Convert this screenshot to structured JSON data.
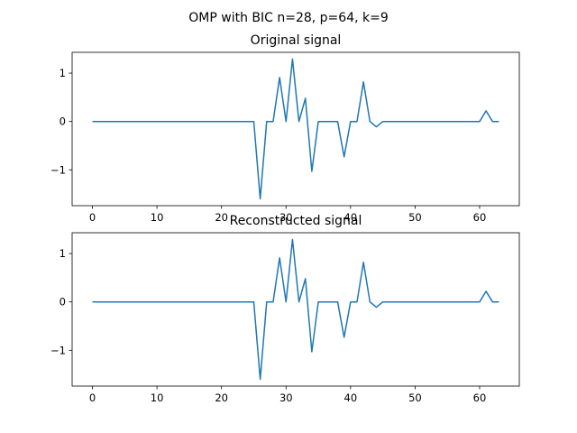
{
  "figure": {
    "suptitle": "OMP with BIC n=28, p=64, k=9",
    "line_color": "#1f77b4"
  },
  "chart_data": [
    {
      "type": "line",
      "title": "Original signal",
      "xlabel": "",
      "ylabel": "",
      "xlim": [
        -3.15,
        66.15
      ],
      "ylim": [
        -1.74,
        1.43
      ],
      "xticks": [
        0,
        10,
        20,
        30,
        40,
        50,
        60
      ],
      "xtick_labels": [
        "0",
        "10",
        "20",
        "30",
        "40",
        "50",
        "60"
      ],
      "yticks": [
        -1,
        0,
        1
      ],
      "ytick_labels": [
        "−1",
        "0",
        "1"
      ],
      "grid": false,
      "series": [
        {
          "x": [
            0,
            1,
            2,
            3,
            4,
            5,
            6,
            7,
            8,
            9,
            10,
            11,
            12,
            13,
            14,
            15,
            16,
            17,
            18,
            19,
            20,
            21,
            22,
            23,
            24,
            25,
            26,
            27,
            28,
            29,
            30,
            31,
            32,
            33,
            34,
            35,
            36,
            37,
            38,
            39,
            40,
            41,
            42,
            43,
            44,
            45,
            46,
            47,
            48,
            49,
            50,
            51,
            52,
            53,
            54,
            55,
            56,
            57,
            58,
            59,
            60,
            61,
            62,
            63
          ],
          "y": [
            0,
            0,
            0,
            0,
            0,
            0,
            0,
            0,
            0,
            0,
            0,
            0,
            0,
            0,
            0,
            0,
            0,
            0,
            0,
            0,
            0,
            0,
            0,
            0,
            0,
            0,
            -1.6,
            0,
            0,
            0.91,
            0,
            1.29,
            0,
            0.48,
            -1.03,
            0,
            0,
            0,
            0,
            -0.73,
            0,
            0,
            0.82,
            0,
            -0.11,
            0,
            0,
            0,
            0,
            0,
            0,
            0,
            0,
            0,
            0,
            0,
            0,
            0,
            0,
            0,
            0,
            0.22,
            0,
            0
          ]
        }
      ]
    },
    {
      "type": "line",
      "title": "Reconstructed signal",
      "xlabel": "",
      "ylabel": "",
      "xlim": [
        -3.15,
        66.15
      ],
      "ylim": [
        -1.74,
        1.43
      ],
      "xticks": [
        0,
        10,
        20,
        30,
        40,
        50,
        60
      ],
      "xtick_labels": [
        "0",
        "10",
        "20",
        "30",
        "40",
        "50",
        "60"
      ],
      "yticks": [
        -1,
        0,
        1
      ],
      "ytick_labels": [
        "−1",
        "0",
        "1"
      ],
      "grid": false,
      "series": [
        {
          "x": [
            0,
            1,
            2,
            3,
            4,
            5,
            6,
            7,
            8,
            9,
            10,
            11,
            12,
            13,
            14,
            15,
            16,
            17,
            18,
            19,
            20,
            21,
            22,
            23,
            24,
            25,
            26,
            27,
            28,
            29,
            30,
            31,
            32,
            33,
            34,
            35,
            36,
            37,
            38,
            39,
            40,
            41,
            42,
            43,
            44,
            45,
            46,
            47,
            48,
            49,
            50,
            51,
            52,
            53,
            54,
            55,
            56,
            57,
            58,
            59,
            60,
            61,
            62,
            63
          ],
          "y": [
            0,
            0,
            0,
            0,
            0,
            0,
            0,
            0,
            0,
            0,
            0,
            0,
            0,
            0,
            0,
            0,
            0,
            0,
            0,
            0,
            0,
            0,
            0,
            0,
            0,
            0,
            -1.6,
            0,
            0,
            0.91,
            0,
            1.29,
            0,
            0.48,
            -1.03,
            0,
            0,
            0,
            0,
            -0.73,
            0,
            0,
            0.82,
            0,
            -0.11,
            0,
            0,
            0,
            0,
            0,
            0,
            0,
            0,
            0,
            0,
            0,
            0,
            0,
            0,
            0,
            0,
            0.22,
            0,
            0
          ]
        }
      ]
    }
  ]
}
